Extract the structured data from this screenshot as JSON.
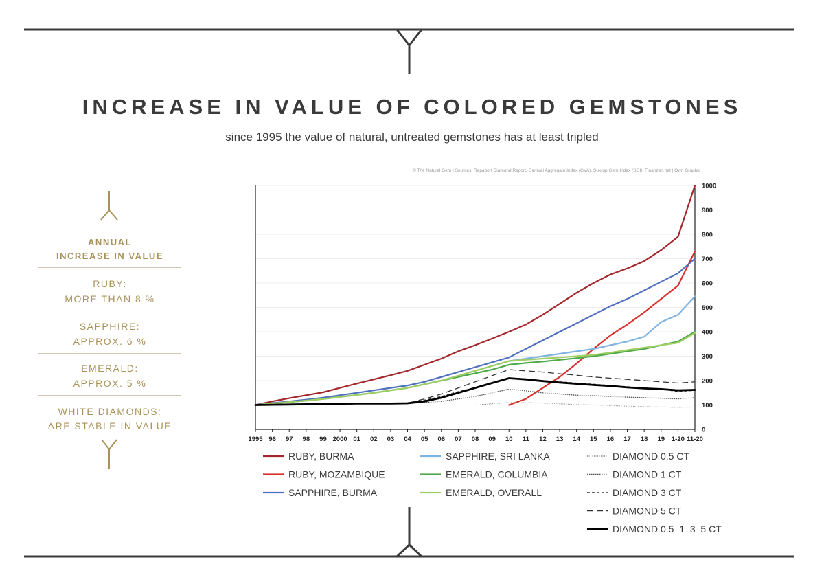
{
  "header": {
    "title": "INCREASE IN VALUE OF COLORED GEMSTONES",
    "subtitle": "since 1995 the value of natural, untreated gemstones has at least tripled",
    "credit": "© The Natural Gem | Sources: Rapaport Diamond Report, Gemval Aggregate Index (GVA), Sukrup Gem Index (SGI), Finanzen.net | Own Graphic"
  },
  "sidebar": {
    "title_line1": "ANNUAL",
    "title_line2": "INCREASE IN VALUE",
    "items": [
      {
        "name": "RUBY:",
        "value": "MORE THAN 8 %"
      },
      {
        "name": "SAPPHIRE:",
        "value": "APPROX. 6 %"
      },
      {
        "name": "EMERALD:",
        "value": "APPROX. 5 %"
      },
      {
        "name": "WHITE DIAMONDS:",
        "value": "ARE STABLE IN VALUE"
      }
    ]
  },
  "colors": {
    "accent_gold": "#a8925a",
    "rule_dark": "#3a3a3a"
  },
  "chart_data": {
    "type": "line",
    "title": "INCREASE IN VALUE OF COLORED GEMSTONES",
    "xlabel": "",
    "ylabel": "",
    "ylim": [
      0,
      1000
    ],
    "y_ticks": [
      0,
      100,
      200,
      300,
      400,
      500,
      600,
      700,
      800,
      900,
      1000
    ],
    "y_axis_side": "right",
    "grid": true,
    "legend_placement": "bottom",
    "categories": [
      "1995",
      "96",
      "97",
      "98",
      "99",
      "2000",
      "01",
      "02",
      "03",
      "04",
      "05",
      "06",
      "07",
      "08",
      "09",
      "10",
      "11",
      "12",
      "13",
      "14",
      "15",
      "16",
      "17",
      "18",
      "19",
      "1-20",
      "11-20"
    ],
    "series": [
      {
        "name": "RUBY, BURMA",
        "color": "#a3272b",
        "dash": "solid",
        "width": 2.2,
        "values": [
          100,
          115,
          128,
          140,
          152,
          170,
          188,
          205,
          222,
          240,
          265,
          290,
          320,
          345,
          372,
          400,
          430,
          470,
          515,
          560,
          600,
          635,
          660,
          690,
          735,
          790,
          1000
        ]
      },
      {
        "name": "RUBY, MOZAMBIQUE",
        "color": "#d9302c",
        "dash": "solid",
        "width": 2.2,
        "values": [
          null,
          null,
          null,
          null,
          null,
          null,
          null,
          null,
          null,
          null,
          null,
          null,
          null,
          null,
          null,
          100,
          125,
          170,
          215,
          270,
          330,
          385,
          430,
          480,
          535,
          590,
          730
        ]
      },
      {
        "name": "SAPPHIRE, BURMA",
        "color": "#4f6fbf",
        "dash": "solid",
        "width": 2.2,
        "values": [
          100,
          108,
          115,
          122,
          130,
          140,
          150,
          160,
          170,
          180,
          195,
          215,
          235,
          255,
          275,
          295,
          330,
          365,
          400,
          435,
          470,
          505,
          535,
          570,
          605,
          640,
          700
        ]
      },
      {
        "name": "SAPPHIRE, SRI LANKA",
        "color": "#7fb3e0",
        "dash": "solid",
        "width": 2.2,
        "values": [
          100,
          106,
          112,
          118,
          125,
          133,
          141,
          150,
          160,
          170,
          185,
          200,
          220,
          240,
          260,
          280,
          290,
          300,
          310,
          320,
          330,
          345,
          360,
          380,
          440,
          470,
          545
        ]
      },
      {
        "name": "EMERALD, COLUMBIA",
        "color": "#4fa84a",
        "dash": "solid",
        "width": 2.2,
        "values": [
          100,
          106,
          112,
          118,
          125,
          133,
          141,
          150,
          160,
          170,
          185,
          200,
          215,
          230,
          245,
          265,
          272,
          278,
          285,
          292,
          300,
          310,
          320,
          330,
          345,
          360,
          400
        ]
      },
      {
        "name": "EMERALD, OVERALL",
        "color": "#9fcf63",
        "dash": "solid",
        "width": 2.2,
        "values": [
          100,
          106,
          112,
          118,
          125,
          133,
          141,
          150,
          160,
          170,
          185,
          200,
          220,
          240,
          260,
          280,
          285,
          290,
          295,
          300,
          305,
          315,
          325,
          335,
          345,
          355,
          395
        ]
      },
      {
        "name": "DIAMOND 0.5 CT",
        "color": "#8a8a8a",
        "dash": "1,1.5",
        "width": 1.1,
        "values": [
          100,
          100,
          100,
          100,
          100,
          100,
          100,
          100,
          100,
          100,
          100,
          100,
          100,
          100,
          105,
          110,
          110,
          108,
          105,
          102,
          100,
          98,
          95,
          93,
          92,
          90,
          92
        ]
      },
      {
        "name": "DIAMOND 1 CT",
        "color": "#555555",
        "dash": "1.5,1.5",
        "width": 1.3,
        "values": [
          100,
          101,
          102,
          103,
          104,
          105,
          106,
          106,
          106,
          107,
          110,
          115,
          125,
          135,
          150,
          165,
          158,
          150,
          145,
          140,
          138,
          135,
          132,
          130,
          128,
          125,
          130
        ]
      },
      {
        "name": "DIAMOND 3 CT",
        "color": "#333333",
        "dash": "4,3",
        "width": 1.3,
        "values": [
          100,
          101,
          102,
          103,
          104,
          105,
          106,
          106,
          106,
          107,
          120,
          135,
          155,
          170,
          190,
          210,
          205,
          200,
          195,
          190,
          185,
          180,
          175,
          170,
          165,
          155,
          160
        ]
      },
      {
        "name": "DIAMOND 5 CT",
        "color": "#333333",
        "dash": "9,5",
        "width": 1.3,
        "values": [
          100,
          101,
          102,
          103,
          104,
          105,
          106,
          106,
          106,
          108,
          125,
          145,
          170,
          195,
          220,
          245,
          240,
          235,
          228,
          222,
          215,
          210,
          205,
          200,
          195,
          190,
          195
        ]
      },
      {
        "name": "DIAMOND 0.5–1–3–5 CT",
        "color": "#000000",
        "dash": "solid",
        "width": 2.8,
        "values": [
          100,
          101,
          102,
          103,
          104,
          105,
          106,
          106,
          106,
          107,
          115,
          130,
          150,
          170,
          190,
          210,
          205,
          198,
          192,
          187,
          182,
          178,
          172,
          168,
          165,
          160,
          162
        ]
      }
    ]
  }
}
